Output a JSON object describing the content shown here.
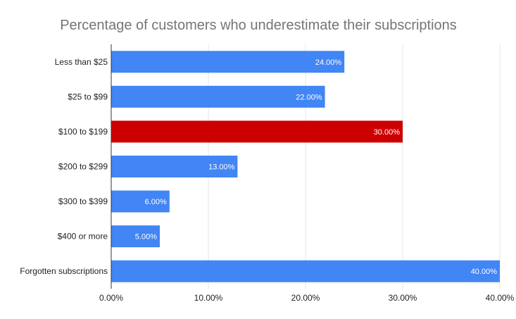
{
  "chart_data": {
    "type": "bar",
    "orientation": "horizontal",
    "title": "Percentage of customers who underestimate their subscriptions",
    "xlabel": "",
    "ylabel": "",
    "categories": [
      "Less than $25",
      "$25 to $99",
      "$100 to $199",
      "$200 to $299",
      "$300 to $399",
      "$400 or more",
      "Forgotten subscriptions"
    ],
    "values": [
      24,
      22,
      30,
      13,
      6,
      5,
      40
    ],
    "data_labels": [
      "24.00%",
      "22.00%",
      "30.00%",
      "13.00%",
      "6.00%",
      "5.00%",
      "40.00%"
    ],
    "colors": [
      "#4285f4",
      "#4285f4",
      "#cc0000",
      "#4285f4",
      "#4285f4",
      "#4285f4",
      "#4285f4"
    ],
    "xlim": [
      0,
      40
    ],
    "xticks": [
      0,
      10,
      20,
      30,
      40
    ],
    "xtick_labels": [
      "0.00%",
      "10.00%",
      "20.00%",
      "30.00%",
      "40.00%"
    ],
    "grid": true,
    "legend": "none"
  }
}
